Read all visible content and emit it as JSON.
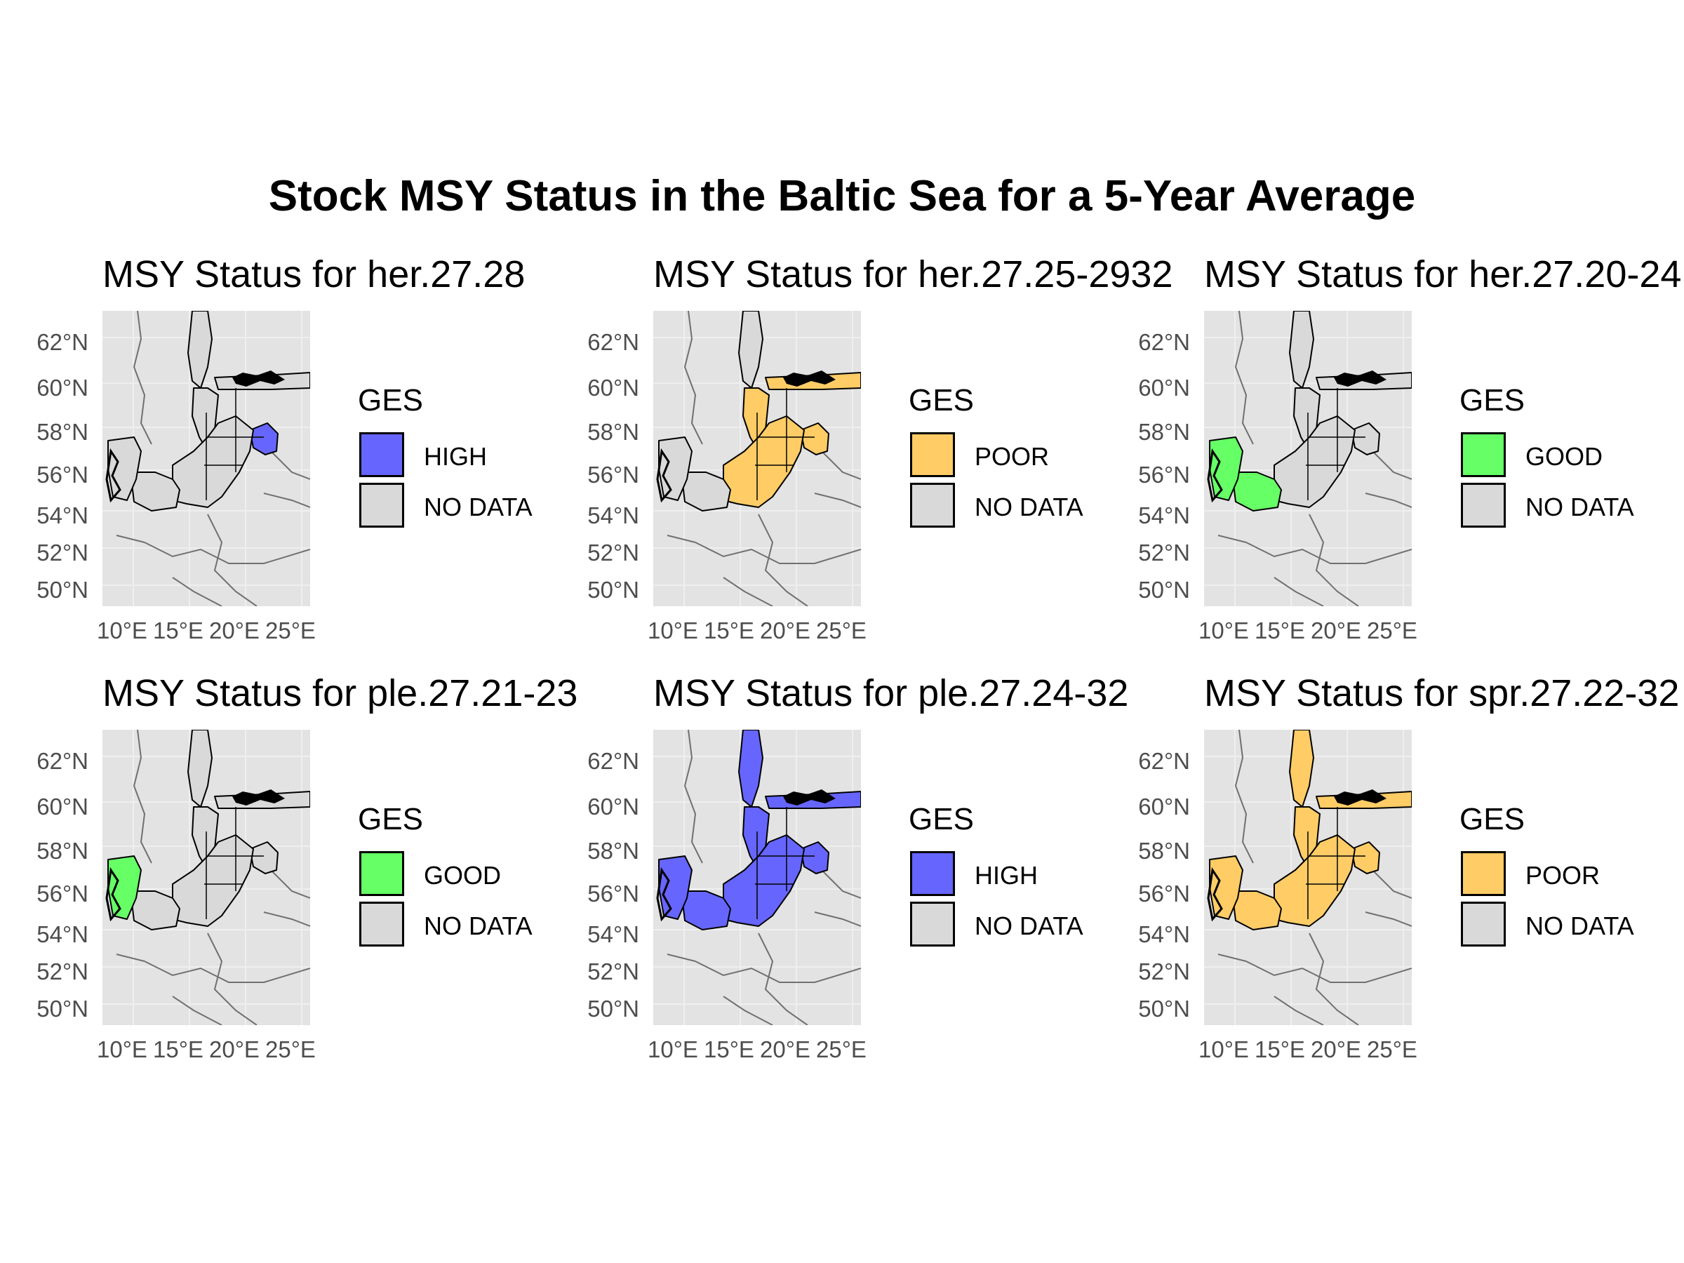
{
  "title": "Stock MSY Status in the Baltic Sea for a 5-Year Average",
  "axis": {
    "lat_ticks": [
      "62°N",
      "60°N",
      "58°N",
      "56°N",
      "54°N",
      "52°N",
      "50°N"
    ],
    "lon_ticks": [
      "10°E",
      "15°E",
      "20°E",
      "25°E"
    ]
  },
  "colors": {
    "HIGH": "#6666ff",
    "GOOD": "#66ff66",
    "POOR": "#ffcc66",
    "NO DATA": "#d9d9d9",
    "land": "#e3e3e3"
  },
  "panels": [
    {
      "title": "MSY Status for her.27.28",
      "legend_title": "GES",
      "status": "HIGH",
      "no_data_label": "NO DATA",
      "region": "gulf-riga"
    },
    {
      "title": "MSY Status for her.27.25-2932",
      "legend_title": "GES",
      "status": "POOR",
      "no_data_label": "NO DATA",
      "region": "central-baltic"
    },
    {
      "title": "MSY Status for her.27.20-24",
      "legend_title": "GES",
      "status": "GOOD",
      "no_data_label": "NO DATA",
      "region": "western-baltic"
    },
    {
      "title": "MSY Status for ple.27.21-23",
      "legend_title": "GES",
      "status": "GOOD",
      "no_data_label": "NO DATA",
      "region": "kattegat-belts"
    },
    {
      "title": "MSY Status for ple.27.24-32",
      "legend_title": "GES",
      "status": "HIGH",
      "no_data_label": "NO DATA",
      "region": "whole-baltic"
    },
    {
      "title": "MSY Status for spr.27.22-32",
      "legend_title": "GES",
      "status": "POOR",
      "no_data_label": "NO DATA",
      "region": "whole-baltic"
    }
  ]
}
